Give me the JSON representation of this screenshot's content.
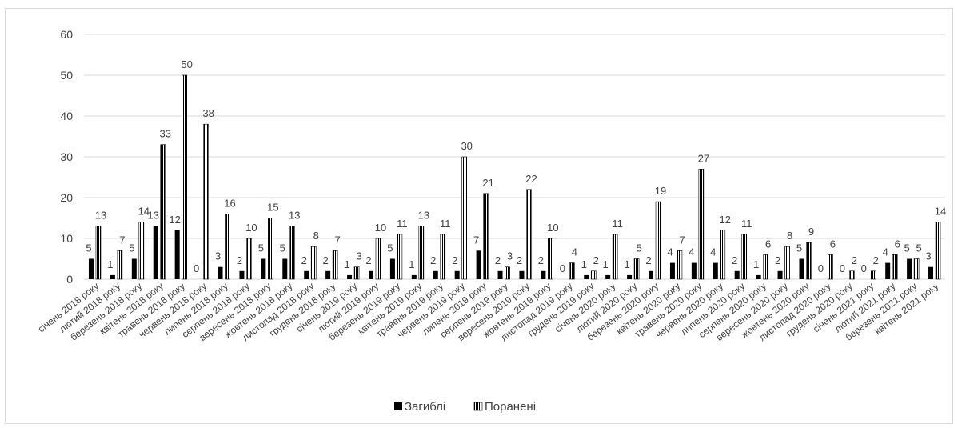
{
  "chart_data": {
    "type": "bar",
    "title": "",
    "xlabel": "",
    "ylabel": "",
    "ylim": [
      0,
      60
    ],
    "yticks": [
      0,
      10,
      20,
      30,
      40,
      50,
      60
    ],
    "grid": true,
    "legend_position": "bottom",
    "categories": [
      "січень 2018 року",
      "лютий 2018 року",
      "березень 2018 року",
      "квітень 2018 року",
      "травень 2018 року",
      "червень 2018 року",
      "липень 2018 року",
      "серпень 2018 року",
      "вересень 2018 року",
      "жовтень 2018 року",
      "листопад 2018 року",
      "грудень 2018 року",
      "січень 2019 року",
      "лютий 2019 року",
      "березень 2019 року",
      "квітень 2019 року",
      "травень 2019 року",
      "червень 2019 року",
      "липень 2019 року",
      "серпень 2019 року",
      "вересень 2019 року",
      "жовтень 2019 року",
      "листопад 2019 року",
      "грудень 2019 року",
      "січень 2020 року",
      "лютий 2020 року",
      "березень 2020 року",
      "квітень 2020 року",
      "травень 2020 року",
      "червень 2020 року",
      "липень 2020 року",
      "серпень 2020 року",
      "вересень 2020 року",
      "жовтень 2020 року",
      "листопад 2020 року",
      "грудень 2020 року",
      "січень 2021 року",
      "лютий 2021 року",
      "березень 2021 року",
      "квітень 2021 року"
    ],
    "series": [
      {
        "name": "Загиблі",
        "color": "#000000",
        "pattern": "solid",
        "values": [
          5,
          1,
          5,
          13,
          12,
          0,
          3,
          2,
          5,
          5,
          2,
          2,
          1,
          2,
          5,
          1,
          2,
          2,
          7,
          2,
          2,
          2,
          0,
          1,
          1,
          1,
          2,
          4,
          4,
          4,
          2,
          1,
          2,
          5,
          0,
          0,
          0,
          4,
          5,
          3
        ]
      },
      {
        "name": "Поранені",
        "color": "#000000",
        "pattern": "vertical-lines",
        "values": [
          13,
          7,
          14,
          33,
          50,
          38,
          16,
          10,
          15,
          13,
          8,
          7,
          3,
          10,
          11,
          13,
          11,
          30,
          21,
          3,
          22,
          10,
          4,
          2,
          11,
          5,
          19,
          7,
          27,
          12,
          11,
          6,
          8,
          9,
          6,
          2,
          2,
          6,
          5,
          14
        ]
      }
    ]
  }
}
